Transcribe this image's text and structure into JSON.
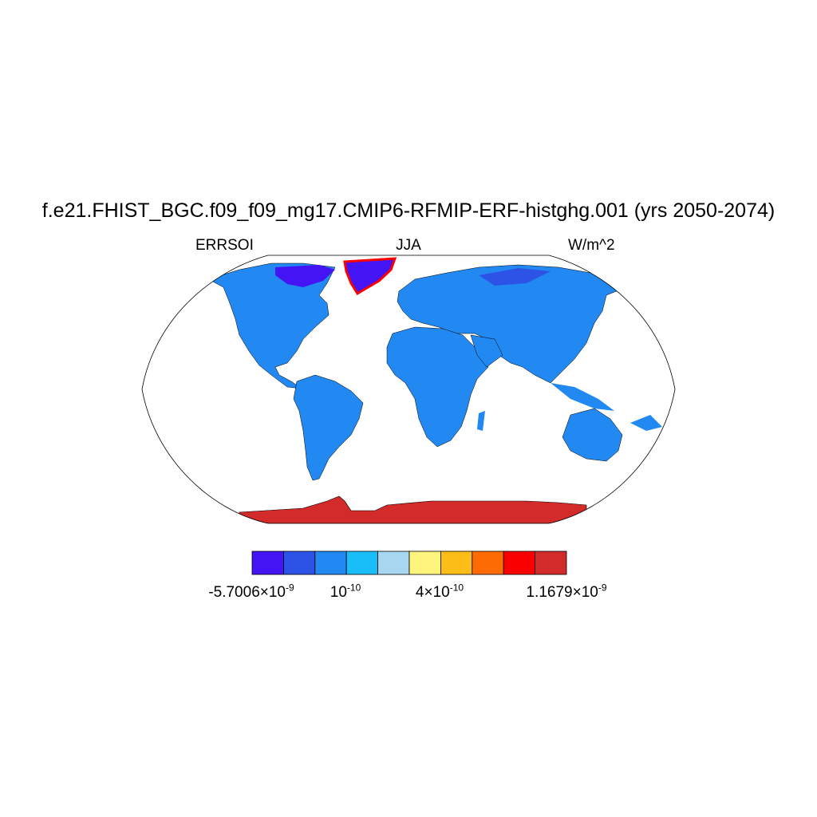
{
  "title": "f.e21.FHIST_BGC.f09_f09_mg17.CMIP6-RFMIP-ERF-histghg.001 (yrs 2050-2074)",
  "subtitle_left": "ERRSOI",
  "subtitle_center": "JJA",
  "subtitle_right": "W/m^2",
  "colorbar": {
    "colors": [
      "#4514f5",
      "#2d52e6",
      "#2288f2",
      "#19bef8",
      "#a6d6f0",
      "#fff47e",
      "#fcbd19",
      "#fd6b05",
      "#fc0000",
      "#d32a2a"
    ],
    "labels": [
      {
        "mantissa": "-5.7006",
        "exponent": "-9"
      },
      {
        "mantissa": "",
        "exponent": "-10"
      },
      {
        "mantissa": "4",
        "exponent": "-10"
      },
      {
        "mantissa": "1.1679",
        "exponent": "-9"
      }
    ]
  },
  "map": {
    "projection": "Robinson",
    "ocean_color": "#ffffff",
    "land_dominant_color": "#2288f2",
    "antarctica_color": "#d32a2a",
    "greenland_color": "#4514f5"
  }
}
